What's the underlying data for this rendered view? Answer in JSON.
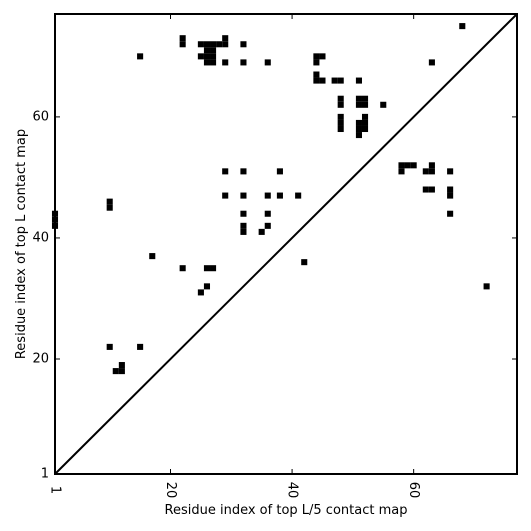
{
  "chart_data": {
    "type": "heatmap",
    "xlabel": "Residue index of top L/5 contact map",
    "ylabel": "Residue index of top L contact map",
    "xlim": [
      1,
      77
    ],
    "ylim": [
      1,
      77
    ],
    "xticks": [
      1,
      20,
      40,
      60
    ],
    "yticks": [
      1,
      20,
      40,
      60
    ],
    "diagonal": true,
    "cell_color": "#000000",
    "contacts": [
      [
        1,
        42
      ],
      [
        1,
        43
      ],
      [
        1,
        44
      ],
      [
        10,
        45
      ],
      [
        10,
        46
      ],
      [
        10,
        22
      ],
      [
        11,
        18
      ],
      [
        12,
        18
      ],
      [
        12,
        19
      ],
      [
        15,
        22
      ],
      [
        15,
        70
      ],
      [
        17,
        37
      ],
      [
        22,
        72
      ],
      [
        22,
        73
      ],
      [
        22,
        35
      ],
      [
        25,
        72
      ],
      [
        25,
        70
      ],
      [
        25,
        31
      ],
      [
        26,
        72
      ],
      [
        26,
        71
      ],
      [
        26,
        70
      ],
      [
        26,
        69
      ],
      [
        26,
        35
      ],
      [
        26,
        32
      ],
      [
        27,
        72
      ],
      [
        27,
        71
      ],
      [
        27,
        70
      ],
      [
        27,
        69
      ],
      [
        27,
        35
      ],
      [
        28,
        72
      ],
      [
        29,
        72
      ],
      [
        29,
        73
      ],
      [
        29,
        69
      ],
      [
        29,
        51
      ],
      [
        29,
        47
      ],
      [
        32,
        72
      ],
      [
        32,
        69
      ],
      [
        32,
        51
      ],
      [
        32,
        47
      ],
      [
        32,
        44
      ],
      [
        32,
        42
      ],
      [
        32,
        41
      ],
      [
        35,
        41
      ],
      [
        36,
        69
      ],
      [
        36,
        47
      ],
      [
        36,
        44
      ],
      [
        36,
        42
      ],
      [
        38,
        51
      ],
      [
        38,
        47
      ],
      [
        41,
        47
      ],
      [
        42,
        36
      ],
      [
        44,
        70
      ],
      [
        44,
        69
      ],
      [
        44,
        67
      ],
      [
        44,
        66
      ],
      [
        45,
        70
      ],
      [
        45,
        66
      ],
      [
        47,
        66
      ],
      [
        48,
        66
      ],
      [
        48,
        63
      ],
      [
        48,
        62
      ],
      [
        48,
        60
      ],
      [
        48,
        59
      ],
      [
        48,
        58
      ],
      [
        51,
        66
      ],
      [
        51,
        63
      ],
      [
        51,
        62
      ],
      [
        51,
        59
      ],
      [
        51,
        58
      ],
      [
        51,
        57
      ],
      [
        52,
        63
      ],
      [
        52,
        62
      ],
      [
        52,
        60
      ],
      [
        52,
        59
      ],
      [
        52,
        58
      ],
      [
        55,
        62
      ],
      [
        58,
        52
      ],
      [
        58,
        51
      ],
      [
        59,
        52
      ],
      [
        60,
        52
      ],
      [
        62,
        51
      ],
      [
        62,
        48
      ],
      [
        63,
        52
      ],
      [
        63,
        51
      ],
      [
        63,
        48
      ],
      [
        63,
        69
      ],
      [
        66,
        51
      ],
      [
        66,
        48
      ],
      [
        66,
        47
      ],
      [
        66,
        44
      ],
      [
        68,
        75
      ],
      [
        72,
        32
      ]
    ]
  }
}
